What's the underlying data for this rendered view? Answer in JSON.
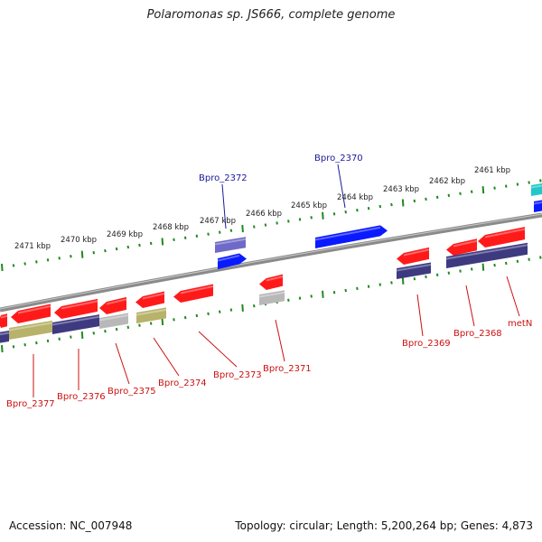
{
  "title": "Polaromonas sp. JS666, complete genome",
  "footer": {
    "accession": "Accession: NC_007948",
    "summary": "Topology: circular; Length: 5,200,264 bp; Genes: 4,873"
  },
  "colors": {
    "backbone": "#8a8a8a",
    "tick": "#1f8a1f",
    "gene_red": "#ff1a1a",
    "gene_blue": "#0a1aff",
    "gene_navy": "#3d3a80",
    "gene_purple": "#6f6ac8",
    "gene_gray": "#b8b8b8",
    "gene_olive": "#b8b26a",
    "gene_cyan": "#21c8c8",
    "label_top": "#1a1a99",
    "label_bottom": "#cc1111"
  },
  "scale_labels": [
    "2471 kbp",
    "2470 kbp",
    "2469 kbp",
    "2468 kbp",
    "2467 kbp",
    "2466 kbp",
    "2465 kbp",
    "2464 kbp",
    "2463 kbp",
    "2462 kbp",
    "2461 kbp"
  ],
  "gene_labels_top": [
    "Bpro_2372",
    "Bpro_2370"
  ],
  "gene_labels_bottom": [
    "Bpro_2377",
    "Bpro_2376",
    "Bpro_2375",
    "Bpro_2374",
    "Bpro_2373",
    "Bpro_2371",
    "Bpro_2369",
    "Bpro_2368",
    "metN"
  ]
}
